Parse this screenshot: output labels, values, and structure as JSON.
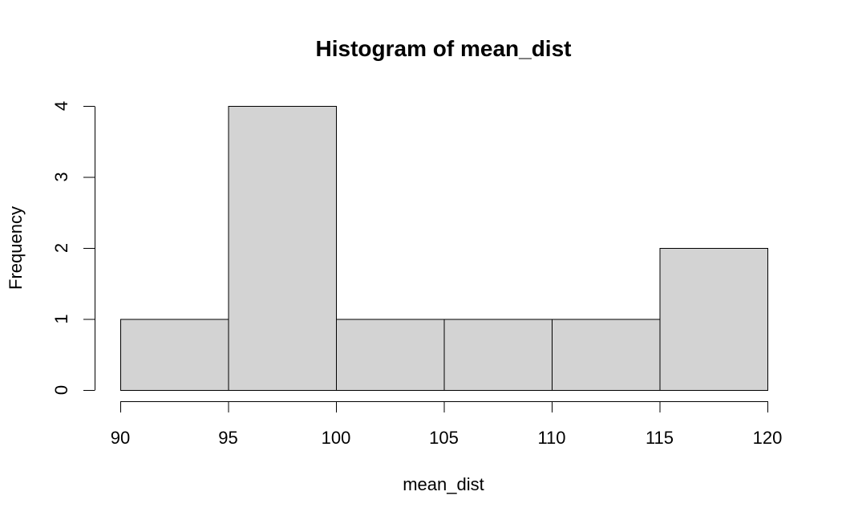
{
  "chart_data": {
    "type": "bar",
    "title": "Histogram of mean_dist",
    "xlabel": "mean_dist",
    "ylabel": "Frequency",
    "bins": [
      {
        "from": 90,
        "to": 95,
        "count": 1
      },
      {
        "from": 95,
        "to": 100,
        "count": 4
      },
      {
        "from": 100,
        "to": 105,
        "count": 1
      },
      {
        "from": 105,
        "to": 110,
        "count": 1
      },
      {
        "from": 110,
        "to": 115,
        "count": 1
      },
      {
        "from": 115,
        "to": 120,
        "count": 2
      }
    ],
    "categories": [
      "90-95",
      "95-100",
      "100-105",
      "105-110",
      "110-115",
      "115-120"
    ],
    "values": [
      1,
      4,
      1,
      1,
      1,
      2
    ],
    "xlim": [
      90,
      120
    ],
    "ylim": [
      0,
      4
    ],
    "x_ticks": [
      "90",
      "95",
      "100",
      "105",
      "110",
      "115",
      "120"
    ],
    "y_ticks": [
      "0",
      "1",
      "2",
      "3",
      "4"
    ],
    "bar_color": "#d3d3d3",
    "grid": false,
    "legend": "none"
  }
}
